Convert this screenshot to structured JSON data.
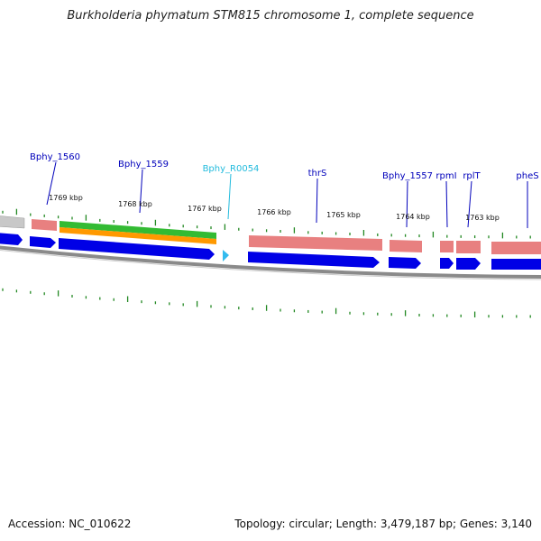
{
  "title": "Burkholderia phymatum STM815 chromosome 1, complete sequence",
  "footer": {
    "accession": "Accession: NC_010622",
    "summary": "Topology: circular; Length: 3,479,187 bp; Genes: 3,140"
  },
  "genes": [
    {
      "label": "Bphy_1560",
      "color": "#0000bb"
    },
    {
      "label": "Bphy_1559",
      "color": "#0000bb"
    },
    {
      "label": "Bphy_R0054",
      "color": "#22bbdd"
    },
    {
      "label": "thrS",
      "color": "#0000bb"
    },
    {
      "label": "Bphy_1557",
      "color": "#0000bb"
    },
    {
      "label": "rpmI",
      "color": "#0000bb"
    },
    {
      "label": "rplT",
      "color": "#0000bb"
    },
    {
      "label": "pheS",
      "color": "#0000bb"
    }
  ],
  "kbp_labels": [
    "1769 kbp",
    "1768 kbp",
    "1767 kbp",
    "1766 kbp",
    "1765 kbp",
    "1764 kbp",
    "1763 kbp"
  ],
  "colors": {
    "cds": "#0000e6",
    "gene": "#e88080",
    "rrna_green": "#33bb33",
    "rrna_orange": "#ff9900",
    "trna": "#33bbee",
    "backbone": "#8a8a8a",
    "ticks": "#228822"
  }
}
